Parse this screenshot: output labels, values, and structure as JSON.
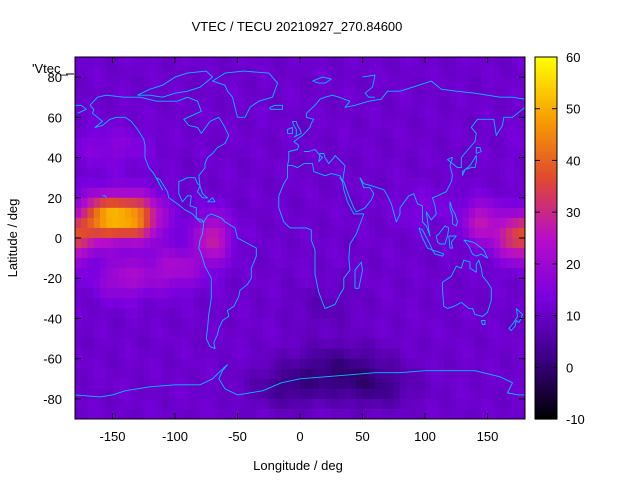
{
  "chart_data": {
    "type": "heatmap",
    "title": "VTEC / TECU 20210927_270.84600",
    "xlabel": "Longitude / deg",
    "ylabel": "Latitude / deg",
    "legend_label": "'Vtec_",
    "xlim": [
      -180,
      180
    ],
    "ylim": [
      -90,
      90
    ],
    "x_ticks": [
      -150,
      -100,
      -50,
      0,
      50,
      100,
      150
    ],
    "y_ticks": [
      -80,
      -60,
      -40,
      -20,
      0,
      20,
      40,
      60,
      80
    ],
    "colorbar": {
      "range": [
        -10,
        60
      ],
      "ticks": [
        -10,
        0,
        10,
        20,
        30,
        40,
        50,
        60
      ],
      "colormap": [
        "#000000",
        "#3a0085",
        "#7a00e0",
        "#b80ec8",
        "#e04a2e",
        "#f8a100",
        "#ffff00"
      ]
    },
    "grid": "off",
    "overlay": "continent coastlines",
    "coastline_color": "#00bfff",
    "anomalies": [
      {
        "lon": -135,
        "lat": 10,
        "value": 48
      },
      {
        "lon": -70,
        "lat": 0,
        "value": 28
      },
      {
        "lon": -160,
        "lat": 10,
        "value": 36
      },
      {
        "lon": 175,
        "lat": 0,
        "value": 36
      },
      {
        "lon": 145,
        "lat": 8,
        "value": 26
      },
      {
        "lon": -100,
        "lat": -15,
        "value": 22
      },
      {
        "lon": -140,
        "lat": -20,
        "value": 22
      },
      {
        "lon": -150,
        "lat": 45,
        "value": 16
      },
      {
        "lon": 100,
        "lat": 15,
        "value": 14
      },
      {
        "lon": 30,
        "lat": -65,
        "value": 2
      },
      {
        "lon": 60,
        "lat": -75,
        "value": 4
      },
      {
        "lon": -10,
        "lat": -75,
        "value": 4
      },
      {
        "lon": 20,
        "lat": -35,
        "value": 8
      }
    ]
  }
}
